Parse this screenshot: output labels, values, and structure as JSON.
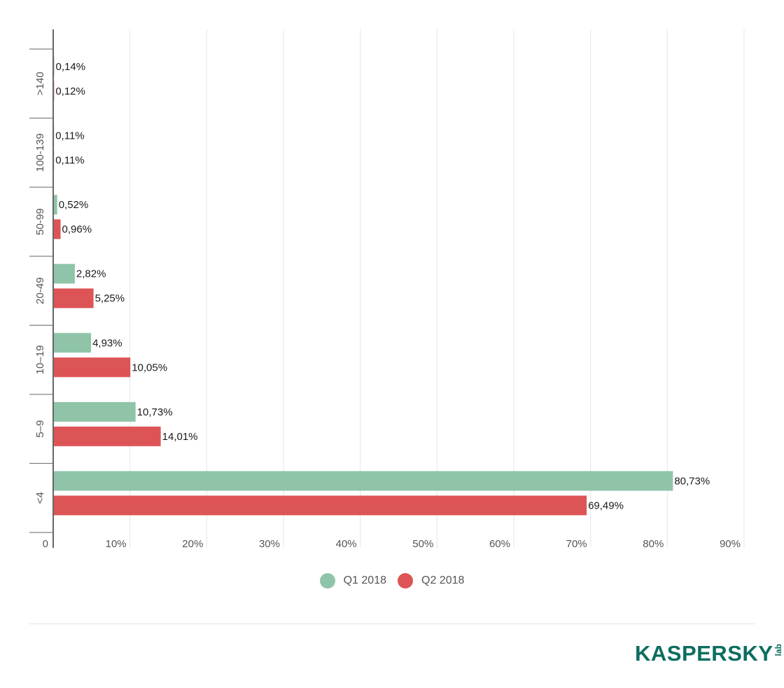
{
  "chart_data": {
    "type": "bar",
    "orientation": "horizontal",
    "categories": [
      ">140",
      "100-139",
      "50-99",
      "20-49",
      "10–19",
      "5–9",
      "<4"
    ],
    "series": [
      {
        "name": "Q1 2018",
        "color": "#8fc4a8",
        "values": [
          0.14,
          0.11,
          0.52,
          2.82,
          4.93,
          10.73,
          80.73
        ],
        "labels": [
          "0,14%",
          "0,11%",
          "0,52%",
          "2,82%",
          "4,93%",
          "10,73%",
          "80,73%"
        ]
      },
      {
        "name": "Q2 2018",
        "color": "#dd5457",
        "values": [
          0.12,
          0.11,
          0.96,
          5.25,
          10.05,
          14.01,
          69.49
        ],
        "labels": [
          "0,12%",
          "0,11%",
          "0,96%",
          "5,25%",
          "10,05%",
          "14,01%",
          "69,49%"
        ]
      }
    ],
    "xlim": [
      0,
      90
    ],
    "x_ticks": [
      0,
      10,
      20,
      30,
      40,
      50,
      60,
      70,
      80,
      90
    ],
    "x_tick_labels": [
      "0",
      "10%",
      "20%",
      "30%",
      "40%",
      "50%",
      "60%",
      "70%",
      "80%",
      "90%"
    ],
    "grid": true,
    "legend_position": "bottom-center"
  },
  "brand": {
    "logo_text": "KASPERSKY",
    "logo_sub": "lab",
    "logo_color": "#0b6e5f"
  }
}
